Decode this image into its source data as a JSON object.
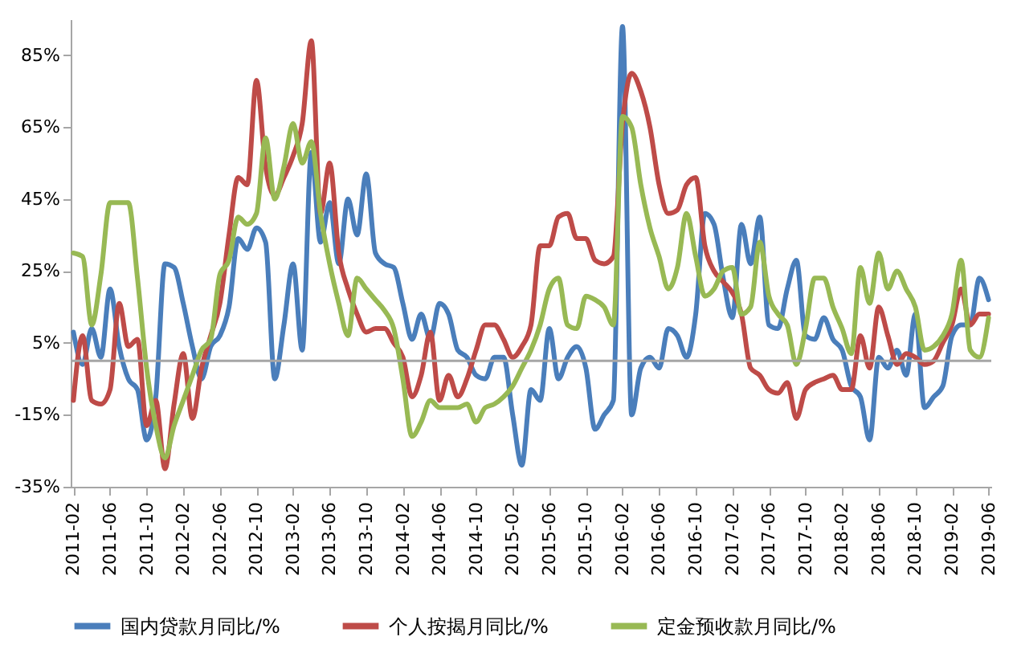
{
  "chart_data": {
    "type": "line",
    "categories": [
      "2011-02",
      null,
      null,
      null,
      "2011-06",
      null,
      null,
      null,
      "2011-10",
      null,
      null,
      null,
      "2012-02",
      null,
      null,
      null,
      "2012-06",
      null,
      null,
      null,
      "2012-10",
      null,
      null,
      null,
      "2013-02",
      null,
      null,
      null,
      "2013-06",
      null,
      null,
      null,
      "2013-10",
      null,
      null,
      null,
      "2014-02",
      null,
      null,
      null,
      "2014-06",
      null,
      null,
      null,
      "2014-10",
      null,
      null,
      null,
      "2015-02",
      null,
      null,
      null,
      "2015-06",
      null,
      null,
      null,
      "2015-10",
      null,
      null,
      null,
      "2016-02",
      null,
      null,
      null,
      "2016-06",
      null,
      null,
      null,
      "2016-10",
      null,
      null,
      null,
      "2017-02",
      null,
      null,
      null,
      "2017-06",
      null,
      null,
      null,
      "2017-10",
      null,
      null,
      null,
      "2018-02",
      null,
      null,
      null,
      "2018-06",
      null,
      null,
      null,
      "2018-10",
      null,
      null,
      null,
      "2019-02",
      null,
      null,
      null,
      "2019-06"
    ],
    "series": [
      {
        "name": "国内贷款月同比/%",
        "color": "#4a7ebb",
        "values": [
          8,
          -1,
          9,
          1,
          20,
          4,
          -5,
          -8,
          -22,
          -10,
          27,
          26,
          16,
          4,
          -5,
          4,
          7,
          15,
          34,
          31,
          37,
          33,
          -5,
          10,
          27,
          3,
          58,
          33,
          44,
          27,
          45,
          35,
          52,
          30,
          27,
          26,
          16,
          6,
          13,
          6,
          16,
          13,
          3,
          1,
          -4,
          -5,
          1,
          1,
          -15,
          -29,
          -8,
          -11,
          9,
          -5,
          1,
          4,
          -2,
          -19,
          -15,
          -11,
          93,
          -15,
          -2,
          1,
          -2,
          9,
          7,
          1,
          13,
          41,
          38,
          23,
          12,
          38,
          27,
          40,
          10,
          9,
          20,
          28,
          7,
          6,
          12,
          6,
          3,
          -7,
          -10,
          -22,
          1,
          -2,
          3,
          -4,
          13,
          -13,
          -10,
          -7,
          7,
          10,
          10,
          23,
          17
        ]
      },
      {
        "name": "个人按揭月同比/%",
        "color": "#be4b48",
        "values": [
          -11,
          7,
          -11,
          -12,
          -8,
          16,
          4,
          6,
          -18,
          -11,
          -30,
          -12,
          2,
          -16,
          -2,
          7,
          16,
          35,
          51,
          49,
          78,
          54,
          46,
          51,
          57,
          66,
          89,
          41,
          55,
          30,
          20,
          13,
          8,
          9,
          9,
          5,
          1,
          -10,
          -4,
          8,
          -11,
          -4,
          -10,
          -5,
          3,
          10,
          10,
          6,
          1,
          4,
          10,
          32,
          32,
          40,
          41,
          34,
          34,
          28,
          27,
          29,
          66,
          80,
          75,
          65,
          49,
          41,
          42,
          49,
          51,
          32,
          25,
          22,
          19,
          13,
          -2,
          -4,
          -8,
          -9,
          -6,
          -16,
          -8,
          -6,
          -5,
          -4,
          -8,
          -8,
          7,
          -2,
          15,
          7,
          -1,
          2,
          1,
          -1,
          0,
          5,
          10,
          20,
          10,
          13,
          13
        ]
      },
      {
        "name": "定金预收款月同比/%",
        "color": "#98b954",
        "values": [
          30,
          29,
          10,
          24,
          44,
          44,
          44,
          23,
          -2,
          -18,
          -27,
          -18,
          -11,
          -4,
          3,
          6,
          24,
          28,
          40,
          38,
          41,
          62,
          45,
          54,
          66,
          55,
          61,
          41,
          27,
          16,
          7,
          23,
          20,
          17,
          14,
          9,
          -5,
          -21,
          -17,
          -11,
          -13,
          -13,
          -13,
          -12,
          -17,
          -13,
          -12,
          -10,
          -7,
          -2,
          3,
          10,
          20,
          23,
          10,
          9,
          18,
          17,
          15,
          10,
          68,
          65,
          49,
          37,
          29,
          20,
          26,
          41,
          29,
          18,
          20,
          25,
          26,
          13,
          15,
          33,
          18,
          13,
          10,
          -1,
          9,
          23,
          23,
          15,
          9,
          2,
          26,
          16,
          30,
          20,
          25,
          20,
          15,
          3,
          4,
          7,
          13,
          28,
          3,
          1,
          12
        ]
      }
    ],
    "ylim": [
      -35,
      95
    ],
    "yticks": [
      {
        "value": -35,
        "label": "-35%"
      },
      {
        "value": -15,
        "label": "-15%"
      },
      {
        "value": 5,
        "label": "5%"
      },
      {
        "value": 25,
        "label": "25%"
      },
      {
        "value": 45,
        "label": "45%"
      },
      {
        "value": 65,
        "label": "65%"
      },
      {
        "value": 85,
        "label": "85%"
      }
    ],
    "ref_lines": [
      {
        "axis": "y",
        "value": 0,
        "color": "#a6a6a6"
      }
    ],
    "grid": false,
    "legend": "bottom",
    "line_style": "solid"
  }
}
